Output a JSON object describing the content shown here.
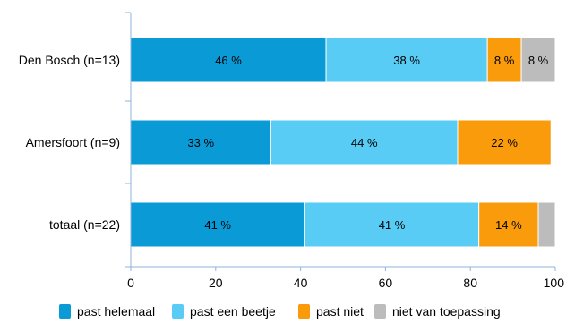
{
  "chart_data": {
    "type": "bar",
    "orientation": "horizontal",
    "stacked": true,
    "categories": [
      "Den Bosch (n=13)",
      "Amersfoort (n=9)",
      "totaal (n=22)"
    ],
    "series": [
      {
        "name": "past helemaal",
        "color": "#0a9bd6",
        "values": [
          46,
          33,
          41
        ],
        "labels": [
          "46 %",
          "33 %",
          "41 %"
        ]
      },
      {
        "name": "past een beetje",
        "color": "#59ccf6",
        "values": [
          38,
          44,
          41
        ],
        "labels": [
          "38 %",
          "44 %",
          "41 %"
        ]
      },
      {
        "name": "past niet",
        "color": "#f99b0a",
        "values": [
          8,
          22,
          14
        ],
        "labels": [
          "8 %",
          "22 %",
          "14 %"
        ]
      },
      {
        "name": "niet van toepassing",
        "color": "#bcbcbc",
        "values": [
          8,
          0,
          4
        ],
        "labels": [
          "8 %",
          "",
          ""
        ]
      }
    ],
    "xlim": [
      0,
      100
    ],
    "xticks": [
      "0",
      "20",
      "40",
      "60",
      "80",
      "100"
    ],
    "xtick_values": [
      0,
      20,
      40,
      60,
      80,
      100
    ],
    "grid": false,
    "legend_position": "bottom",
    "title": "",
    "xlabel": "",
    "ylabel": ""
  }
}
